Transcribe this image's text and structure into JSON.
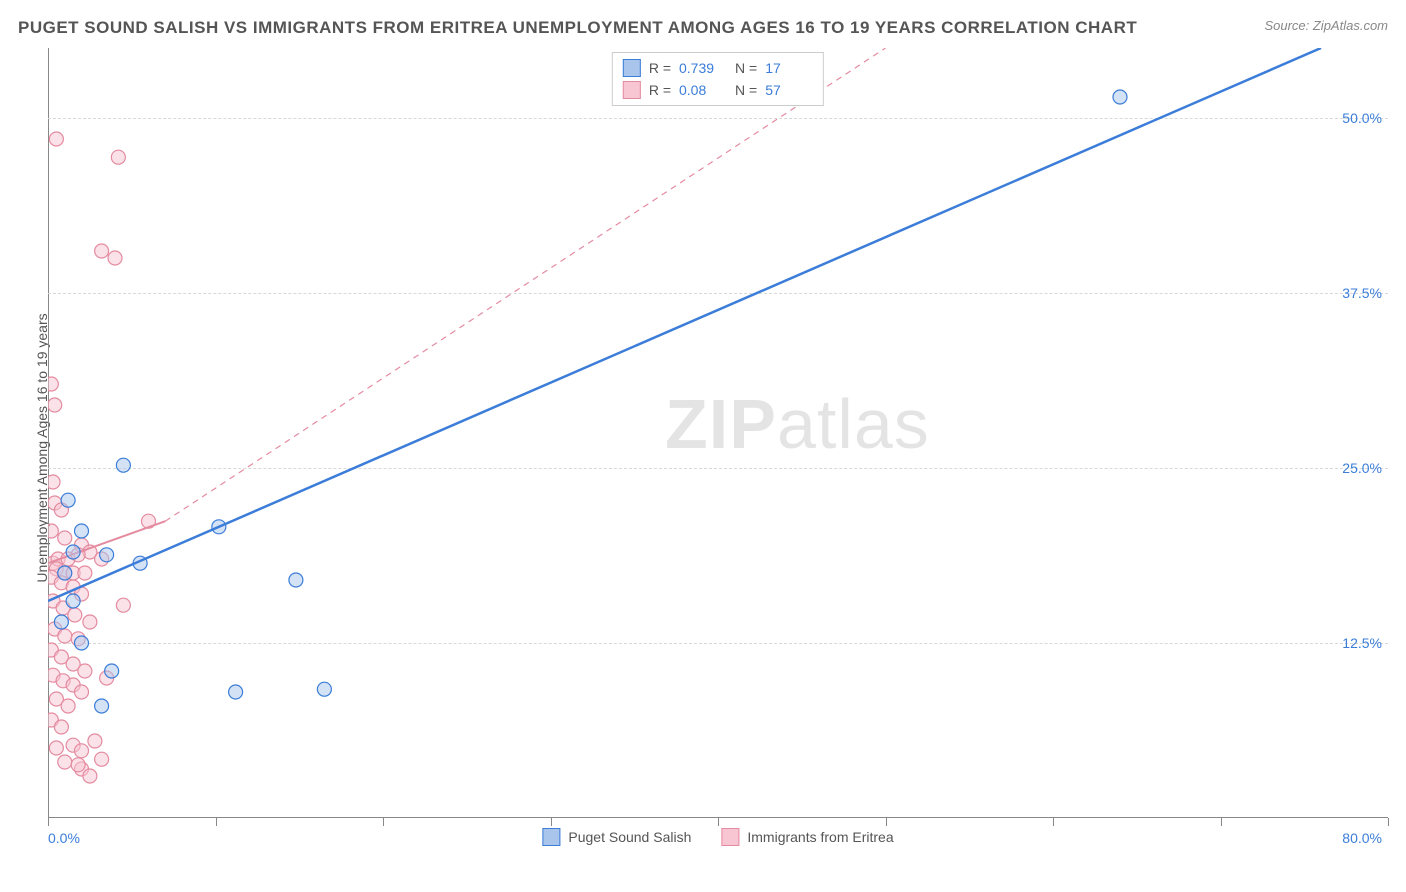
{
  "title": "PUGET SOUND SALISH VS IMMIGRANTS FROM ERITREA UNEMPLOYMENT AMONG AGES 16 TO 19 YEARS CORRELATION CHART",
  "source": "Source: ZipAtlas.com",
  "watermark": {
    "bold": "ZIP",
    "rest": "atlas"
  },
  "y_axis_label": "Unemployment Among Ages 16 to 19 years",
  "chart": {
    "type": "scatter",
    "xlim": [
      0,
      80
    ],
    "ylim": [
      0,
      55
    ],
    "x_ticks": [
      0,
      10,
      20,
      30,
      40,
      50,
      60,
      70,
      80
    ],
    "y_gridlines": [
      12.5,
      25.0,
      37.5,
      50.0
    ],
    "x_labels": [
      {
        "value": 0,
        "text": "0.0%"
      },
      {
        "value": 80,
        "text": "80.0%"
      }
    ],
    "y_labels": [
      {
        "value": 12.5,
        "text": "12.5%"
      },
      {
        "value": 25.0,
        "text": "25.0%"
      },
      {
        "value": 37.5,
        "text": "37.5%"
      },
      {
        "value": 50.0,
        "text": "50.0%"
      }
    ],
    "background_color": "#ffffff",
    "grid_color": "#d8d8d8",
    "axis_color": "#888888",
    "label_color": "#3b7dd8",
    "marker_radius": 7,
    "marker_stroke_width": 1.2,
    "marker_fill_opacity": 0.25,
    "series": [
      {
        "name": "Puget Sound Salish",
        "color": "#3b7dd8",
        "fill": "#a9c5ec",
        "r": 0.739,
        "n": 17,
        "trend": {
          "x1": 0,
          "y1": 15.5,
          "x2": 76,
          "y2": 55,
          "width": 2.5,
          "dash": "none"
        },
        "points": [
          [
            64,
            51.5
          ],
          [
            4.5,
            25.2
          ],
          [
            1.2,
            22.7
          ],
          [
            3.5,
            18.8
          ],
          [
            5.5,
            18.2
          ],
          [
            10.2,
            20.8
          ],
          [
            14.8,
            17.0
          ],
          [
            2.0,
            12.5
          ],
          [
            3.8,
            10.5
          ],
          [
            3.2,
            8.0
          ],
          [
            11.2,
            9.0
          ],
          [
            16.5,
            9.2
          ],
          [
            1.0,
            17.5
          ],
          [
            2.0,
            20.5
          ],
          [
            1.5,
            15.5
          ],
          [
            0.8,
            14.0
          ],
          [
            1.5,
            19.0
          ]
        ]
      },
      {
        "name": "Immigrants from Eritrea",
        "color": "#e48ba0",
        "fill": "#f7c6d2",
        "r": 0.08,
        "n": 57,
        "trend_solid": {
          "x1": 0,
          "y1": 18.2,
          "x2": 7,
          "y2": 21.2,
          "width": 2.0
        },
        "trend_dashed": {
          "x1": 7,
          "y1": 21.2,
          "x2": 50,
          "y2": 55,
          "width": 1.2,
          "dash": "6,5"
        },
        "points": [
          [
            0.5,
            48.5
          ],
          [
            4.2,
            47.2
          ],
          [
            3.2,
            40.5
          ],
          [
            4.0,
            40.0
          ],
          [
            0.2,
            31.0
          ],
          [
            0.4,
            29.5
          ],
          [
            0.3,
            24.0
          ],
          [
            0.4,
            22.5
          ],
          [
            0.8,
            22.0
          ],
          [
            6.0,
            21.2
          ],
          [
            0.2,
            20.5
          ],
          [
            1.0,
            20.0
          ],
          [
            2.0,
            19.5
          ],
          [
            2.5,
            19.0
          ],
          [
            3.2,
            18.5
          ],
          [
            0.3,
            18.2
          ],
          [
            0.6,
            18.5
          ],
          [
            1.2,
            18.5
          ],
          [
            1.8,
            18.8
          ],
          [
            0.5,
            17.8
          ],
          [
            1.0,
            17.5
          ],
          [
            1.5,
            17.5
          ],
          [
            2.2,
            17.5
          ],
          [
            0.2,
            17.2
          ],
          [
            0.8,
            16.8
          ],
          [
            1.5,
            16.5
          ],
          [
            2.0,
            16.0
          ],
          [
            4.5,
            15.2
          ],
          [
            0.3,
            15.5
          ],
          [
            0.9,
            15.0
          ],
          [
            1.6,
            14.5
          ],
          [
            2.5,
            14.0
          ],
          [
            0.4,
            13.5
          ],
          [
            1.0,
            13.0
          ],
          [
            1.8,
            12.8
          ],
          [
            0.2,
            12.0
          ],
          [
            0.8,
            11.5
          ],
          [
            1.5,
            11.0
          ],
          [
            2.2,
            10.5
          ],
          [
            3.5,
            10.0
          ],
          [
            0.3,
            10.2
          ],
          [
            0.9,
            9.8
          ],
          [
            1.5,
            9.5
          ],
          [
            0.5,
            8.5
          ],
          [
            1.2,
            8.0
          ],
          [
            2.0,
            9.0
          ],
          [
            0.2,
            7.0
          ],
          [
            0.8,
            6.5
          ],
          [
            1.5,
            5.2
          ],
          [
            2.0,
            4.8
          ],
          [
            2.8,
            5.5
          ],
          [
            3.2,
            4.2
          ],
          [
            2.0,
            3.5
          ],
          [
            2.5,
            3.0
          ],
          [
            0.5,
            5.0
          ],
          [
            1.0,
            4.0
          ],
          [
            1.8,
            3.8
          ]
        ]
      }
    ]
  },
  "legend_top": {
    "r_label": "R  =",
    "n_label": "N  ="
  },
  "legend_bottom": {
    "items": [
      "Puget Sound Salish",
      "Immigrants from Eritrea"
    ]
  }
}
